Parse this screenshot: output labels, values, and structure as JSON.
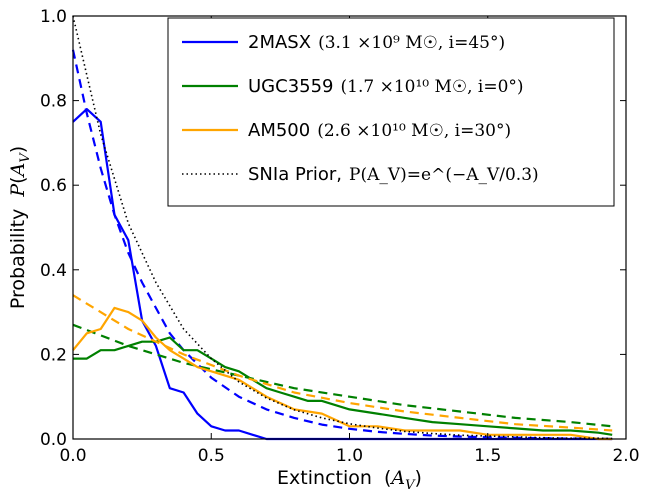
{
  "chart_data": {
    "type": "line",
    "title": "",
    "xlabel": "Extinction",
    "xlabel_math": "(A_V)",
    "ylabel": "Probability",
    "ylabel_math": "P(A_V)",
    "xlim": [
      0.0,
      2.0
    ],
    "ylim": [
      0.0,
      1.0
    ],
    "xticks": [
      0.0,
      0.5,
      1.0,
      1.5,
      2.0
    ],
    "xtick_labels": [
      "0.0",
      "0.5",
      "1.0",
      "1.5",
      "2.0"
    ],
    "yticks": [
      0.0,
      0.2,
      0.4,
      0.6,
      0.8,
      1.0
    ],
    "ytick_labels": [
      "0.0",
      "0.2",
      "0.4",
      "0.6",
      "0.8",
      "1.0"
    ],
    "grid": false,
    "legend_placement": "top-right",
    "series": [
      {
        "name": "2MASX",
        "legend_math": "(3.1 ×10⁹ M☉, i=45°)",
        "color": "#0000ff",
        "style": "solid",
        "x": [
          0.0,
          0.05,
          0.1,
          0.15,
          0.2,
          0.25,
          0.3,
          0.35,
          0.4,
          0.45,
          0.5,
          0.55,
          0.6,
          0.65,
          0.7,
          0.75,
          0.8,
          0.9,
          1.0,
          1.2,
          1.4,
          1.6,
          1.8,
          1.95
        ],
        "y": [
          0.75,
          0.78,
          0.75,
          0.53,
          0.47,
          0.28,
          0.22,
          0.12,
          0.11,
          0.06,
          0.03,
          0.02,
          0.02,
          0.01,
          0.0,
          0.0,
          0.0,
          0.0,
          0.0,
          0.0,
          0.0,
          0.0,
          0.0,
          0.0
        ]
      },
      {
        "name": "2MASX prior",
        "color": "#0000ff",
        "style": "dashed",
        "x": [
          0.0,
          0.05,
          0.1,
          0.15,
          0.2,
          0.25,
          0.3,
          0.35,
          0.4,
          0.5,
          0.6,
          0.7,
          0.8,
          0.9,
          1.0,
          1.1,
          1.2,
          1.3,
          1.4,
          1.5,
          1.6,
          1.7,
          1.8,
          1.9,
          1.95
        ],
        "y": [
          0.92,
          0.77,
          0.64,
          0.53,
          0.44,
          0.37,
          0.31,
          0.25,
          0.21,
          0.145,
          0.1,
          0.07,
          0.05,
          0.034,
          0.024,
          0.017,
          0.012,
          0.008,
          0.006,
          0.004,
          0.003,
          0.002,
          0.001,
          0.001,
          0.0
        ]
      },
      {
        "name": "UGC3559",
        "legend_math": "(1.7 ×10¹⁰ M☉, i=0°)",
        "color": "#008000",
        "style": "solid",
        "x": [
          0.0,
          0.05,
          0.1,
          0.15,
          0.2,
          0.25,
          0.3,
          0.35,
          0.4,
          0.45,
          0.5,
          0.55,
          0.6,
          0.65,
          0.7,
          0.75,
          0.8,
          0.85,
          0.9,
          1.0,
          1.1,
          1.2,
          1.3,
          1.4,
          1.5,
          1.6,
          1.7,
          1.8,
          1.9,
          1.95
        ],
        "y": [
          0.19,
          0.19,
          0.21,
          0.21,
          0.22,
          0.23,
          0.23,
          0.24,
          0.21,
          0.21,
          0.19,
          0.17,
          0.16,
          0.14,
          0.12,
          0.11,
          0.1,
          0.09,
          0.09,
          0.07,
          0.06,
          0.05,
          0.04,
          0.035,
          0.03,
          0.025,
          0.02,
          0.02,
          0.015,
          0.01
        ]
      },
      {
        "name": "UGC3559 prior",
        "color": "#008000",
        "style": "dashed",
        "x": [
          0.0,
          0.2,
          0.4,
          0.6,
          0.8,
          1.0,
          1.2,
          1.4,
          1.6,
          1.8,
          1.95
        ],
        "y": [
          0.27,
          0.22,
          0.18,
          0.15,
          0.12,
          0.1,
          0.08,
          0.065,
          0.05,
          0.04,
          0.03
        ]
      },
      {
        "name": "AM500",
        "legend_math": "(2.6 ×10¹⁰ M☉, i=30°)",
        "color": "#ffa500",
        "style": "solid",
        "x": [
          0.0,
          0.05,
          0.1,
          0.15,
          0.2,
          0.25,
          0.3,
          0.35,
          0.4,
          0.45,
          0.5,
          0.55,
          0.6,
          0.7,
          0.8,
          0.9,
          1.0,
          1.1,
          1.2,
          1.3,
          1.4,
          1.5,
          1.6,
          1.7,
          1.8,
          1.9,
          1.95
        ],
        "y": [
          0.21,
          0.25,
          0.26,
          0.31,
          0.3,
          0.28,
          0.24,
          0.21,
          0.19,
          0.17,
          0.16,
          0.15,
          0.14,
          0.1,
          0.07,
          0.06,
          0.03,
          0.03,
          0.02,
          0.02,
          0.02,
          0.01,
          0.01,
          0.01,
          0.01,
          0.0,
          0.0
        ]
      },
      {
        "name": "AM500 prior",
        "color": "#ffa500",
        "style": "dashed",
        "x": [
          0.0,
          0.2,
          0.4,
          0.6,
          0.8,
          1.0,
          1.2,
          1.4,
          1.6,
          1.8,
          1.95
        ],
        "y": [
          0.34,
          0.26,
          0.2,
          0.15,
          0.11,
          0.085,
          0.065,
          0.05,
          0.035,
          0.027,
          0.02
        ]
      },
      {
        "name": "SNIa Prior,",
        "legend_math": "P(A_V)=e^(−A_V/0.3)",
        "color": "#000000",
        "style": "dotted",
        "x": [
          0.0,
          0.1,
          0.2,
          0.3,
          0.4,
          0.5,
          0.6,
          0.7,
          0.8,
          0.9,
          1.0,
          1.1,
          1.2,
          1.3,
          1.4,
          1.5,
          1.6,
          1.7,
          1.8,
          1.9,
          1.95
        ],
        "y": [
          1.0,
          0.72,
          0.51,
          0.37,
          0.26,
          0.19,
          0.135,
          0.097,
          0.069,
          0.05,
          0.036,
          0.026,
          0.018,
          0.013,
          0.009,
          0.007,
          0.005,
          0.003,
          0.002,
          0.002,
          0.001
        ]
      }
    ],
    "legend_series": [
      0,
      2,
      4,
      6
    ]
  }
}
